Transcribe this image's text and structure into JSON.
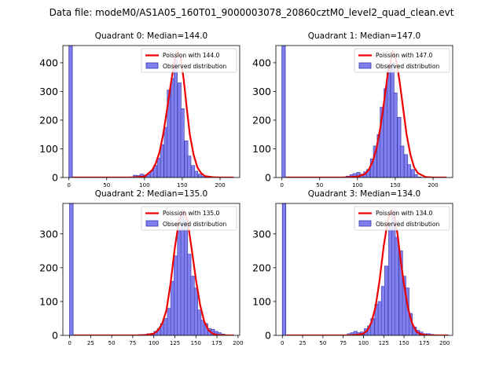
{
  "figure_title": "Data file: modeM0/AS1A05_160T01_9000003078_20860cztM0_level2_quad_clean.evt",
  "chart_data": [
    {
      "type": "bar",
      "title": "Quadrant 0: Median=144.0",
      "median": 144.0,
      "xlim": [
        -8,
        226
      ],
      "ylim": [
        0,
        460
      ],
      "xticks": [
        0,
        50,
        100,
        150,
        200
      ],
      "yticks": [
        0,
        100,
        200,
        300,
        400
      ],
      "bin_width": 4.5,
      "zero_bin_count": 460,
      "hist_x": [
        85,
        90,
        94,
        99,
        103,
        108,
        112,
        117,
        121,
        126,
        130,
        135,
        139,
        144,
        148,
        153,
        157,
        162,
        166,
        171,
        175,
        180
      ],
      "hist_y": [
        8,
        7,
        12,
        9,
        12,
        25,
        42,
        68,
        115,
        175,
        305,
        345,
        410,
        330,
        240,
        128,
        75,
        42,
        22,
        12,
        5,
        2
      ],
      "fit_x": [
        5,
        60,
        80,
        90,
        100,
        110,
        115,
        120,
        125,
        130,
        135,
        140,
        144,
        148,
        152,
        156,
        160,
        165,
        170,
        175,
        180,
        190,
        200,
        210,
        218
      ],
      "fit_y": [
        0,
        0,
        0,
        1,
        3,
        25,
        50,
        90,
        155,
        240,
        330,
        410,
        440,
        415,
        340,
        240,
        150,
        80,
        35,
        15,
        5,
        1,
        0,
        0,
        0
      ],
      "legend": [
        "Poission with 144.0",
        "Observed distribution"
      ]
    },
    {
      "type": "bar",
      "title": "Quadrant 1: Median=147.0",
      "median": 147.0,
      "xlim": [
        -8,
        226
      ],
      "ylim": [
        0,
        460
      ],
      "xticks": [
        0,
        50,
        100,
        150,
        200
      ],
      "yticks": [
        0,
        100,
        200,
        300,
        400
      ],
      "bin_width": 4.5,
      "zero_bin_count": 460,
      "hist_x": [
        85,
        90,
        94,
        99,
        103,
        108,
        112,
        117,
        121,
        126,
        130,
        135,
        139,
        144,
        148,
        153,
        157,
        162,
        166,
        171,
        175,
        180
      ],
      "hist_y": [
        5,
        10,
        14,
        18,
        12,
        20,
        28,
        65,
        110,
        150,
        245,
        310,
        385,
        400,
        295,
        210,
        110,
        80,
        45,
        28,
        10,
        2
      ],
      "fit_x": [
        5,
        60,
        80,
        90,
        100,
        110,
        115,
        120,
        125,
        130,
        135,
        140,
        147,
        152,
        156,
        160,
        165,
        170,
        175,
        180,
        190,
        200,
        210,
        218
      ],
      "fit_y": [
        0,
        0,
        0,
        1,
        3,
        12,
        28,
        55,
        100,
        170,
        260,
        360,
        440,
        400,
        330,
        250,
        150,
        80,
        35,
        15,
        2,
        0,
        0,
        0
      ],
      "legend": [
        "Poission with 147.0",
        "Observed distribution"
      ]
    },
    {
      "type": "bar",
      "title": "Quadrant 2: Median=135.0",
      "median": 135.0,
      "xlim": [
        -8,
        202
      ],
      "ylim": [
        0,
        390
      ],
      "xticks": [
        0,
        25,
        50,
        75,
        100,
        125,
        150,
        175,
        200
      ],
      "yticks": [
        0,
        100,
        200,
        300
      ],
      "bin_width": 4.2,
      "zero_bin_count": 390,
      "hist_x": [
        80,
        84,
        88,
        92,
        96,
        100,
        104,
        108,
        112,
        116,
        120,
        124,
        128,
        132,
        136,
        140,
        144,
        148,
        152,
        156,
        160,
        164,
        168,
        172,
        176,
        180,
        184
      ],
      "hist_y": [
        2,
        2,
        3,
        5,
        6,
        12,
        20,
        35,
        50,
        80,
        160,
        235,
        315,
        370,
        340,
        240,
        175,
        140,
        75,
        45,
        35,
        20,
        18,
        12,
        8,
        4,
        2
      ],
      "fit_x": [
        5,
        60,
        80,
        90,
        100,
        105,
        110,
        115,
        120,
        125,
        130,
        135,
        140,
        145,
        150,
        155,
        160,
        165,
        170,
        175,
        185,
        195
      ],
      "fit_y": [
        0,
        0,
        0,
        1,
        5,
        15,
        35,
        75,
        155,
        260,
        340,
        370,
        340,
        255,
        165,
        90,
        40,
        15,
        5,
        1,
        0,
        0
      ],
      "legend": [
        "Poission with 135.0",
        "Observed distribution"
      ]
    },
    {
      "type": "bar",
      "title": "Quadrant 3: Median=134.0",
      "median": 134.0,
      "xlim": [
        -8,
        210
      ],
      "ylim": [
        0,
        390
      ],
      "xticks": [
        0,
        25,
        50,
        75,
        100,
        125,
        150,
        175,
        200
      ],
      "yticks": [
        0,
        100,
        200,
        300
      ],
      "bin_width": 4.3,
      "zero_bin_count": 390,
      "hist_x": [
        80,
        84,
        88,
        92,
        96,
        101,
        105,
        109,
        114,
        118,
        122,
        126,
        131,
        135,
        139,
        144,
        148,
        152,
        156,
        161,
        165,
        169,
        174,
        178,
        182,
        186
      ],
      "hist_y": [
        5,
        8,
        12,
        8,
        10,
        20,
        28,
        50,
        92,
        100,
        145,
        205,
        320,
        370,
        290,
        250,
        175,
        140,
        65,
        25,
        15,
        10,
        5,
        5,
        3,
        2
      ],
      "fit_x": [
        5,
        60,
        80,
        90,
        100,
        105,
        110,
        115,
        120,
        125,
        130,
        134,
        138,
        142,
        146,
        150,
        155,
        160,
        165,
        170,
        180,
        190,
        205
      ],
      "fit_y": [
        0,
        0,
        0,
        1,
        5,
        15,
        40,
        85,
        165,
        265,
        340,
        370,
        355,
        300,
        220,
        150,
        80,
        35,
        12,
        4,
        0,
        0,
        0
      ],
      "legend": [
        "Poission with 134.0",
        "Observed distribution"
      ]
    }
  ]
}
